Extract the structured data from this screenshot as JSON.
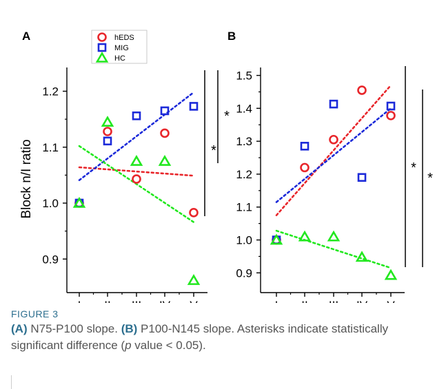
{
  "chart_data": [
    {
      "panel_label": "A",
      "type": "scatter",
      "categories": [
        "I",
        "II",
        "III",
        "IV",
        "V"
      ],
      "ylabel": "Block n/I ratio",
      "ylim": [
        0.84,
        1.24
      ],
      "yticks": [
        0.9,
        1.0,
        1.1,
        1.2
      ],
      "ytick_labels": [
        "0.9",
        "1.0",
        "1.1",
        "1.2"
      ],
      "series": [
        {
          "name": "hEDS",
          "marker": "circle",
          "color": "#e8262b",
          "values": [
            1.0,
            1.128,
            1.043,
            1.125,
            0.983
          ],
          "trend": [
            1.064,
            1.049
          ]
        },
        {
          "name": "MIG",
          "marker": "square",
          "color": "#1c2ad9",
          "values": [
            1.0,
            1.111,
            1.156,
            1.165,
            1.173
          ],
          "trend": [
            1.041,
            1.198
          ]
        },
        {
          "name": "HC",
          "marker": "triangle",
          "color": "#22e81f",
          "values": [
            1.0,
            1.145,
            1.075,
            1.075,
            0.862
          ],
          "trend": [
            1.102,
            0.966
          ]
        }
      ],
      "significance": [
        "*",
        "*"
      ]
    },
    {
      "panel_label": "B",
      "type": "scatter",
      "categories": [
        "I",
        "II",
        "III",
        "IV",
        "V"
      ],
      "ylabel": "",
      "ylim": [
        0.84,
        1.52
      ],
      "yticks": [
        0.9,
        1.0,
        1.1,
        1.2,
        1.3,
        1.4,
        1.5
      ],
      "ytick_labels": [
        "0.9",
        "1.0",
        "1.1",
        "1.2",
        "1.3",
        "1.4",
        "1.5"
      ],
      "series": [
        {
          "name": "hEDS",
          "marker": "circle",
          "color": "#e8262b",
          "values": [
            1.0,
            1.22,
            1.305,
            1.455,
            1.378
          ],
          "trend": [
            1.075,
            1.47
          ]
        },
        {
          "name": "MIG",
          "marker": "square",
          "color": "#1c2ad9",
          "values": [
            1.0,
            1.285,
            1.413,
            1.19,
            1.407
          ],
          "trend": [
            1.115,
            1.4
          ]
        },
        {
          "name": "HC",
          "marker": "triangle",
          "color": "#22e81f",
          "values": [
            1.0,
            1.01,
            1.01,
            0.948,
            0.893
          ],
          "trend": [
            1.028,
            0.915
          ]
        }
      ],
      "significance": [
        "*",
        "*"
      ]
    }
  ],
  "legend": {
    "placement": "top-left of panel A",
    "entries": [
      "hEDS",
      "MIG",
      "HC"
    ]
  },
  "caption": {
    "figure_label": "FIGURE 3",
    "a_tag": "(A)",
    "a_text": " N75-P100 slope. ",
    "b_tag": "(B)",
    "b_text": " P100-N145 slope. Asterisks indicate statistically significant difference (",
    "p_symbol": "p",
    "tail_text": " value < 0.05)."
  }
}
